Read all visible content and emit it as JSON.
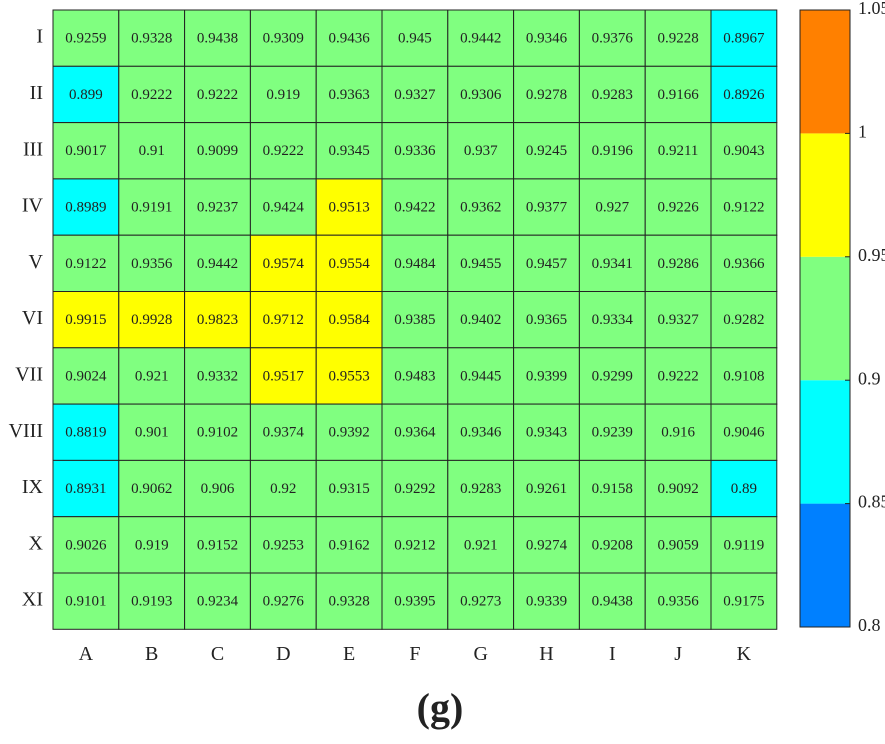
{
  "chart_data": {
    "type": "heatmap",
    "x_categories": [
      "A",
      "B",
      "C",
      "D",
      "E",
      "F",
      "G",
      "H",
      "I",
      "J",
      "K"
    ],
    "y_categories": [
      "I",
      "II",
      "III",
      "IV",
      "V",
      "VI",
      "VII",
      "VIII",
      "IX",
      "X",
      "XI"
    ],
    "values": [
      [
        0.9259,
        0.9328,
        0.9438,
        0.9309,
        0.9436,
        0.945,
        0.9442,
        0.9346,
        0.9376,
        0.9228,
        0.8967
      ],
      [
        0.899,
        0.9222,
        0.9222,
        0.919,
        0.9363,
        0.9327,
        0.9306,
        0.9278,
        0.9283,
        0.9166,
        0.8926
      ],
      [
        0.9017,
        0.91,
        0.9099,
        0.9222,
        0.9345,
        0.9336,
        0.937,
        0.9245,
        0.9196,
        0.9211,
        0.9043
      ],
      [
        0.8989,
        0.9191,
        0.9237,
        0.9424,
        0.9513,
        0.9422,
        0.9362,
        0.9377,
        0.927,
        0.9226,
        0.9122
      ],
      [
        0.9122,
        0.9356,
        0.9442,
        0.9574,
        0.9554,
        0.9484,
        0.9455,
        0.9457,
        0.9341,
        0.9286,
        0.9366
      ],
      [
        0.9915,
        0.9928,
        0.9823,
        0.9712,
        0.9584,
        0.9385,
        0.9402,
        0.9365,
        0.9334,
        0.9327,
        0.9282
      ],
      [
        0.9024,
        0.921,
        0.9332,
        0.9517,
        0.9553,
        0.9483,
        0.9445,
        0.9399,
        0.9299,
        0.9222,
        0.9108
      ],
      [
        0.8819,
        0.901,
        0.9102,
        0.9374,
        0.9392,
        0.9364,
        0.9346,
        0.9343,
        0.9239,
        0.916,
        0.9046
      ],
      [
        0.8931,
        0.9062,
        0.906,
        0.92,
        0.9315,
        0.9292,
        0.9283,
        0.9261,
        0.9158,
        0.9092,
        0.89
      ],
      [
        0.9026,
        0.919,
        0.9152,
        0.9253,
        0.9162,
        0.9212,
        0.921,
        0.9274,
        0.9208,
        0.9059,
        0.9119
      ],
      [
        0.9101,
        0.9193,
        0.9234,
        0.9276,
        0.9328,
        0.9395,
        0.9273,
        0.9339,
        0.9438,
        0.9356,
        0.9175
      ]
    ],
    "colorbar": {
      "lim": [
        0.8,
        1.05
      ],
      "ticks": [
        0.8,
        0.85,
        0.9,
        0.95,
        1,
        1.05
      ],
      "colors": [
        "#0080ff",
        "#00ffff",
        "#80ff80",
        "#ffff00",
        "#ff8000"
      ]
    },
    "caption": "(g)"
  }
}
